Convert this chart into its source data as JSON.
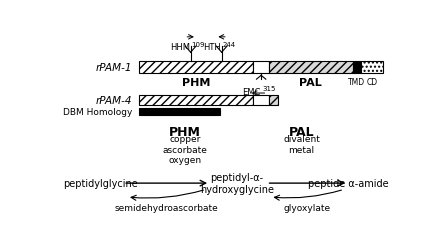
{
  "rPAM1_label": "rPAM-1",
  "rPAM4_label": "rPAM-4",
  "DBM_label": "DBM Homology",
  "PHM_label": "PHM",
  "PAL_label": "PAL",
  "EMC_label": "EMC",
  "TMD_label": "TMD",
  "CD_label": "CD",
  "HHM_label": "HHM",
  "HTH_label": "HTH",
  "HHM_sup": "109",
  "HTH_sup": "244",
  "EMC_sup": "315",
  "cofactor1_line1": "copper",
  "cofactor1_line2": "ascorbate",
  "cofactor1_line3": "oxygen",
  "cofactor2_line1": "divalent",
  "cofactor2_line2": "metal",
  "mol1": "peptidylglycine",
  "mol2": "peptidyl-α-\nhydroxyglycine",
  "mol3": "peptide α-amide",
  "byp1": "semidehydroascorbate",
  "byp2": "glyoxylate"
}
